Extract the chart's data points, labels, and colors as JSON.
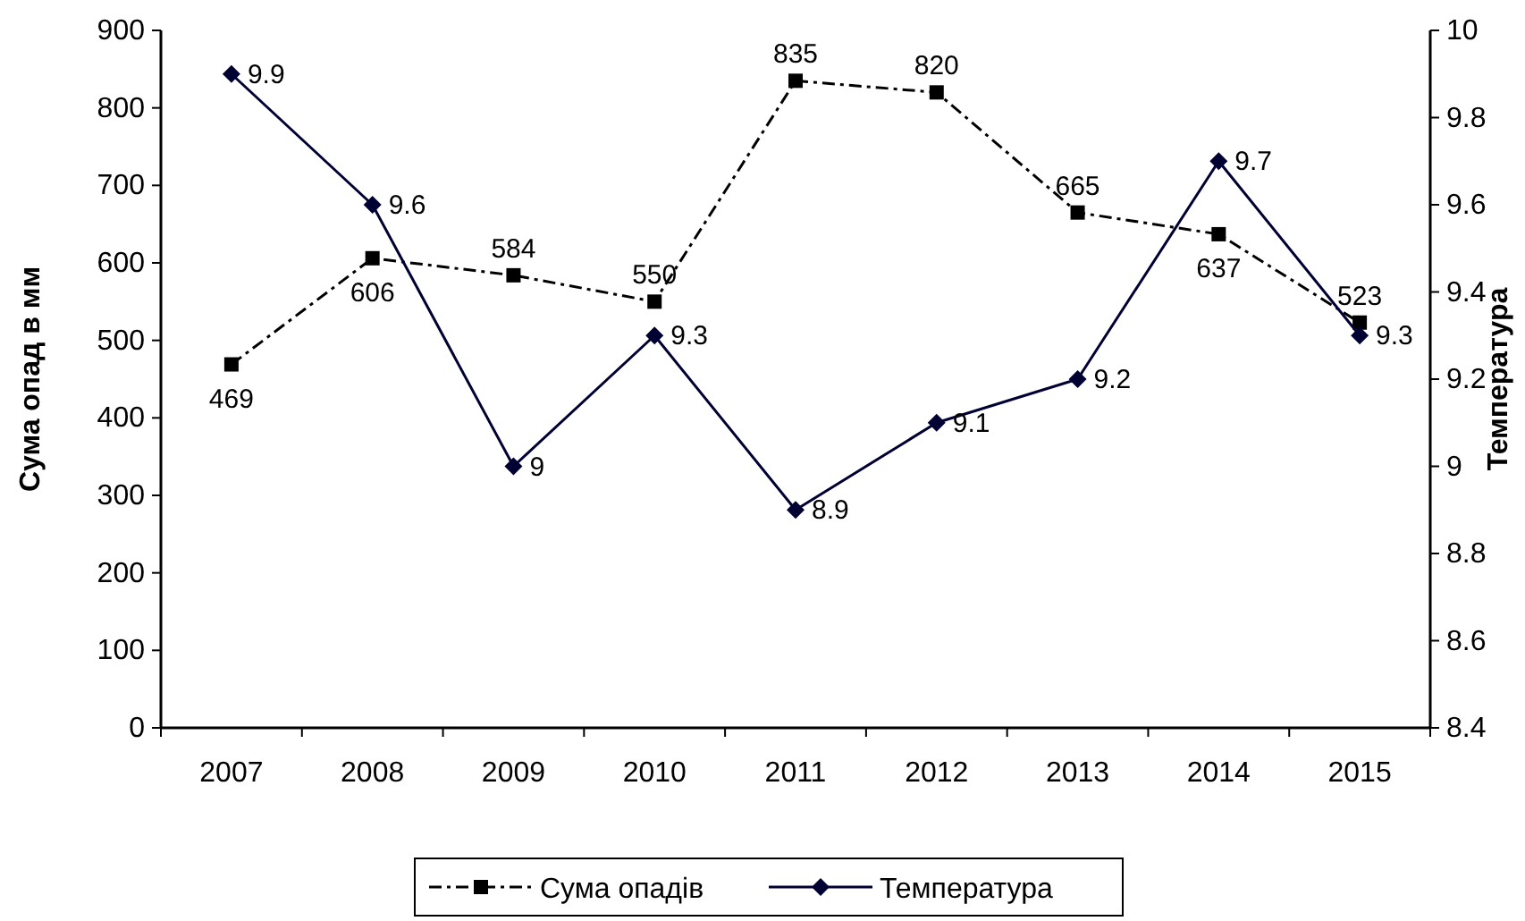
{
  "chart_data": {
    "type": "line",
    "xlabel": null,
    "ylabel": "Сума опад в мм",
    "y2label": "Температура",
    "categories": [
      "2007",
      "2008",
      "2009",
      "2010",
      "2011",
      "2012",
      "2013",
      "2014",
      "2015"
    ],
    "series": [
      {
        "name": "Сума опадів",
        "color": "#000000",
        "values": [
          469,
          606,
          584,
          550,
          835,
          820,
          665,
          637,
          523
        ],
        "marker": "square",
        "line_style": "dashdot"
      },
      {
        "name": "Температура",
        "color": "#000033",
        "values": [
          9.9,
          9.6,
          9,
          9.3,
          8.9,
          9.1,
          9.2,
          9.7,
          9.3
        ],
        "marker": "diamond",
        "line_style": "solid",
        "axis": "y2"
      }
    ],
    "ylim": [
      0,
      900
    ],
    "yticks": [
      0,
      100,
      200,
      300,
      400,
      500,
      600,
      700,
      800,
      900
    ],
    "y2lim": [
      8.4,
      10
    ],
    "y2ticks": [
      8.4,
      8.6,
      8.8,
      9,
      9.2,
      9.4,
      9.6,
      9.8,
      10
    ],
    "data_labels": true,
    "legend": "bottom",
    "grid": false
  }
}
